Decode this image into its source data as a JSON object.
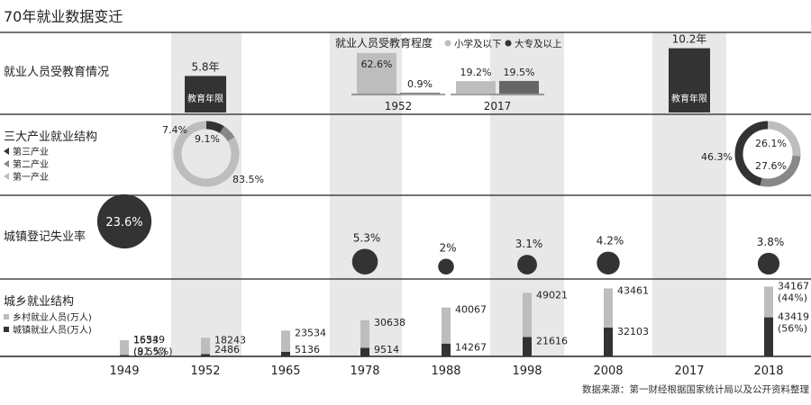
{
  "title": "70年就业数据变迁",
  "source": "数据来源：第一财经根据国家统计局以及公开资料整理",
  "colors": {
    "dark": "#333333",
    "mid": "#888888",
    "light": "#bdbdbd",
    "band": "#e8e8e8",
    "line": "#222222"
  },
  "chart_data": [
    {
      "type": "bar",
      "title": "就业人员受教育情况",
      "bar_label": "教育年限",
      "unit": "年",
      "categories": [
        "1952",
        "2017"
      ],
      "values": [
        5.8,
        10.2
      ],
      "inset": {
        "title": "就业人员受教育程度",
        "legend": [
          "小学及以下",
          "大专及以上"
        ],
        "categories": [
          "1952",
          "2017"
        ],
        "series": [
          {
            "name": "小学及以下",
            "values": [
              62.6,
              19.2
            ]
          },
          {
            "name": "大专及以上",
            "values": [
              0.9,
              19.5
            ]
          }
        ],
        "unit": "%"
      }
    },
    {
      "type": "pie",
      "title": "三大产业就业结构",
      "legend": [
        "第三产业",
        "第二产业",
        "第一产业"
      ],
      "unit": "%",
      "groups": [
        {
          "year": "1952",
          "values": {
            "第一产业": 83.5,
            "第二产业": 7.4,
            "第三产业": 9.1
          }
        },
        {
          "year": "2018",
          "values": {
            "第一产业": 26.1,
            "第二产业": 27.6,
            "第三产业": 46.3
          }
        }
      ]
    },
    {
      "type": "scatter",
      "title": "城镇登记失业率",
      "unit": "%",
      "x": [
        "1949",
        "1978",
        "1988",
        "1998",
        "2008",
        "2018"
      ],
      "values": [
        23.6,
        5.3,
        2,
        3.1,
        4.2,
        3.8
      ]
    },
    {
      "type": "bar",
      "title": "城乡就业结构",
      "legend": [
        "乡村就业人员(万人)",
        "城镇就业人员(万人)"
      ],
      "categories": [
        "1949",
        "1952",
        "1965",
        "1978",
        "1988",
        "1998",
        "2008",
        "2017",
        "2018"
      ],
      "series": [
        {
          "name": "乡村就业人员(万人)",
          "values": [
            16549,
            18243,
            23534,
            30638,
            40067,
            49021,
            43461,
            null,
            34167
          ]
        },
        {
          "name": "城镇就业人员(万人)",
          "values": [
            1533,
            2486,
            5136,
            9514,
            14267,
            21616,
            32103,
            null,
            43419
          ]
        }
      ],
      "shares": {
        "1949": [
          "91.5%",
          "8.5%"
        ],
        "2018": [
          "44%",
          "56%"
        ]
      }
    }
  ]
}
